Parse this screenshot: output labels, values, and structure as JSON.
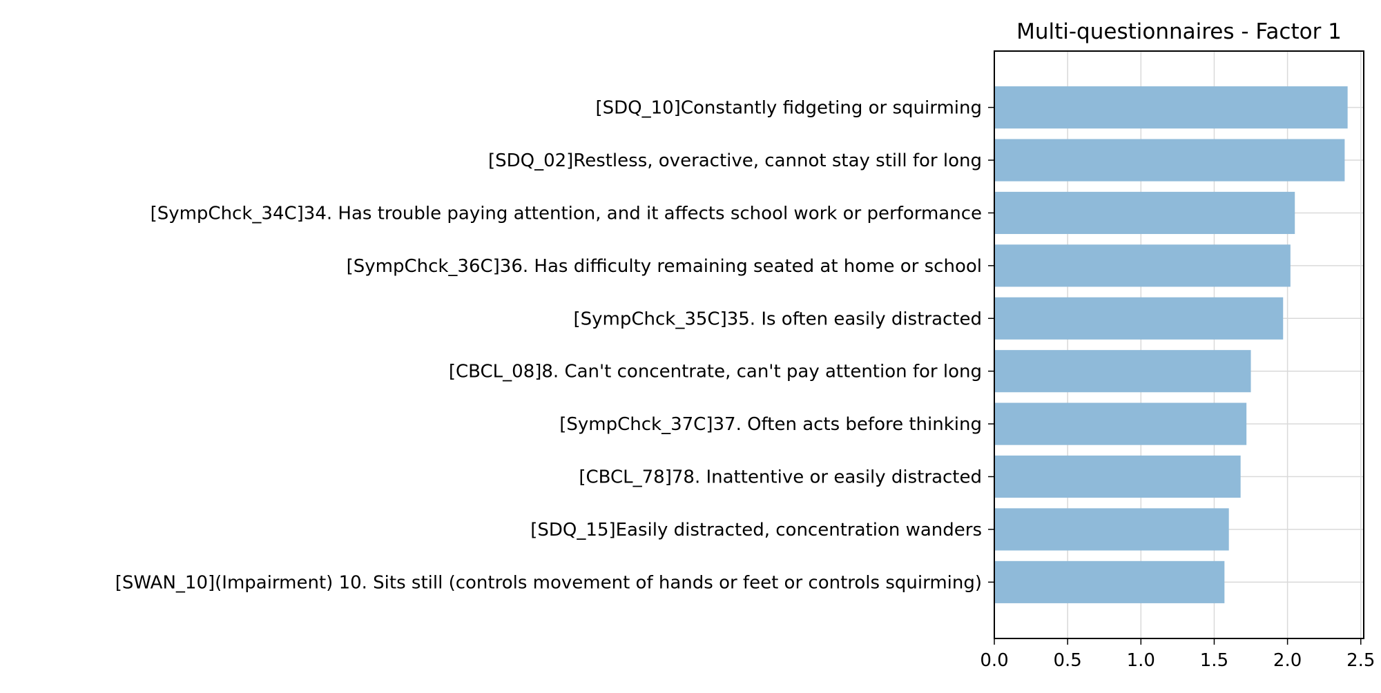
{
  "chart_data": {
    "type": "bar",
    "orientation": "horizontal",
    "title": "Multi-questionnaires - Factor 1",
    "xlabel": "",
    "ylabel": "",
    "categories": [
      "[SDQ_10]Constantly fidgeting or squirming",
      "[SDQ_02]Restless, overactive, cannot stay still for long",
      "[SympChck_34C]34. Has trouble paying attention, and it affects school work or performance",
      "[SympChck_36C]36. Has difficulty remaining seated at home or school",
      "[SympChck_35C]35. Is often easily distracted",
      "[CBCL_08]8. Can't concentrate, can't pay attention for long",
      "[SympChck_37C]37. Often acts before thinking",
      "[CBCL_78]78. Inattentive or easily distracted",
      "[SDQ_15]Easily distracted, concentration wanders",
      "[SWAN_10](Impairment) 10. Sits still (controls movement of hands or feet or controls squirming)"
    ],
    "values": [
      2.41,
      2.39,
      2.05,
      2.02,
      1.97,
      1.75,
      1.72,
      1.68,
      1.6,
      1.57
    ],
    "xlim": [
      0,
      2.52
    ],
    "xticks": [
      0.0,
      0.5,
      1.0,
      1.5,
      2.0,
      2.5
    ],
    "xtick_labels": [
      "0.0",
      "0.5",
      "1.0",
      "1.5",
      "2.0",
      "2.5"
    ],
    "grid": true,
    "bar_color": "#8fbad9",
    "grid_color": "#d9d9d9",
    "axis_color": "#000000"
  }
}
